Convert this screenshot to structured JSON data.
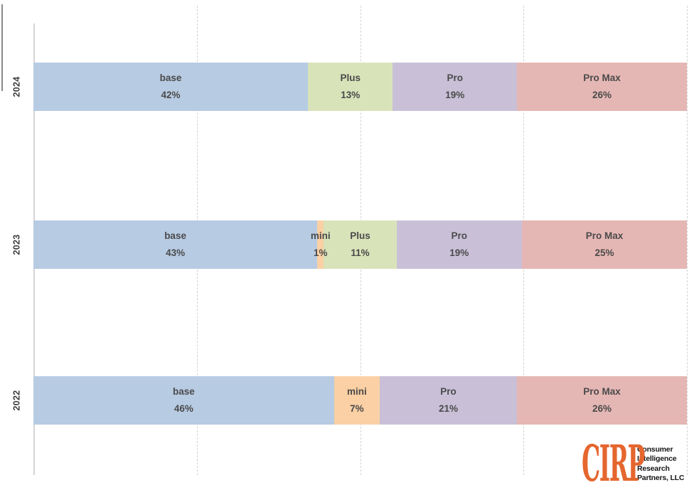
{
  "page": {
    "background": "#ffffff",
    "description": "Horizontal stacked bar chart of iPhone model mix by year"
  },
  "chart_data": {
    "type": "bar",
    "variant": "horizontal-stacked",
    "title": "",
    "xlabel": "",
    "ylabel": "",
    "categories": [
      "2024",
      "2023",
      "2022"
    ],
    "series": [
      {
        "name": "base",
        "color": "#B7CBE3",
        "values": [
          42,
          43,
          46
        ]
      },
      {
        "name": "mini",
        "color": "#FAD0A4",
        "values": [
          0,
          1,
          7
        ]
      },
      {
        "name": "Plus",
        "color": "#D9E3BA",
        "values": [
          13,
          11,
          0
        ]
      },
      {
        "name": "Pro",
        "color": "#C9C0D8",
        "values": [
          19,
          19,
          21
        ]
      },
      {
        "name": "Pro Max",
        "color": "#E5B7B4",
        "values": [
          26,
          25,
          26
        ]
      }
    ],
    "value_suffix": "%",
    "xlim": [
      0,
      100
    ],
    "gridlines": [
      0,
      25,
      50,
      75,
      100
    ],
    "grid_style": "dashed-vertical",
    "legend": "none",
    "label_text_color": "#4a4a4a",
    "axis_text_color": "#3d3d3d"
  },
  "logo": {
    "abbr": "CIRP",
    "abbr_color": "#E5662E",
    "text_color": "#151515",
    "lines": [
      "Consumer",
      "Intelligence",
      "Research",
      "Partners, LLC"
    ]
  }
}
